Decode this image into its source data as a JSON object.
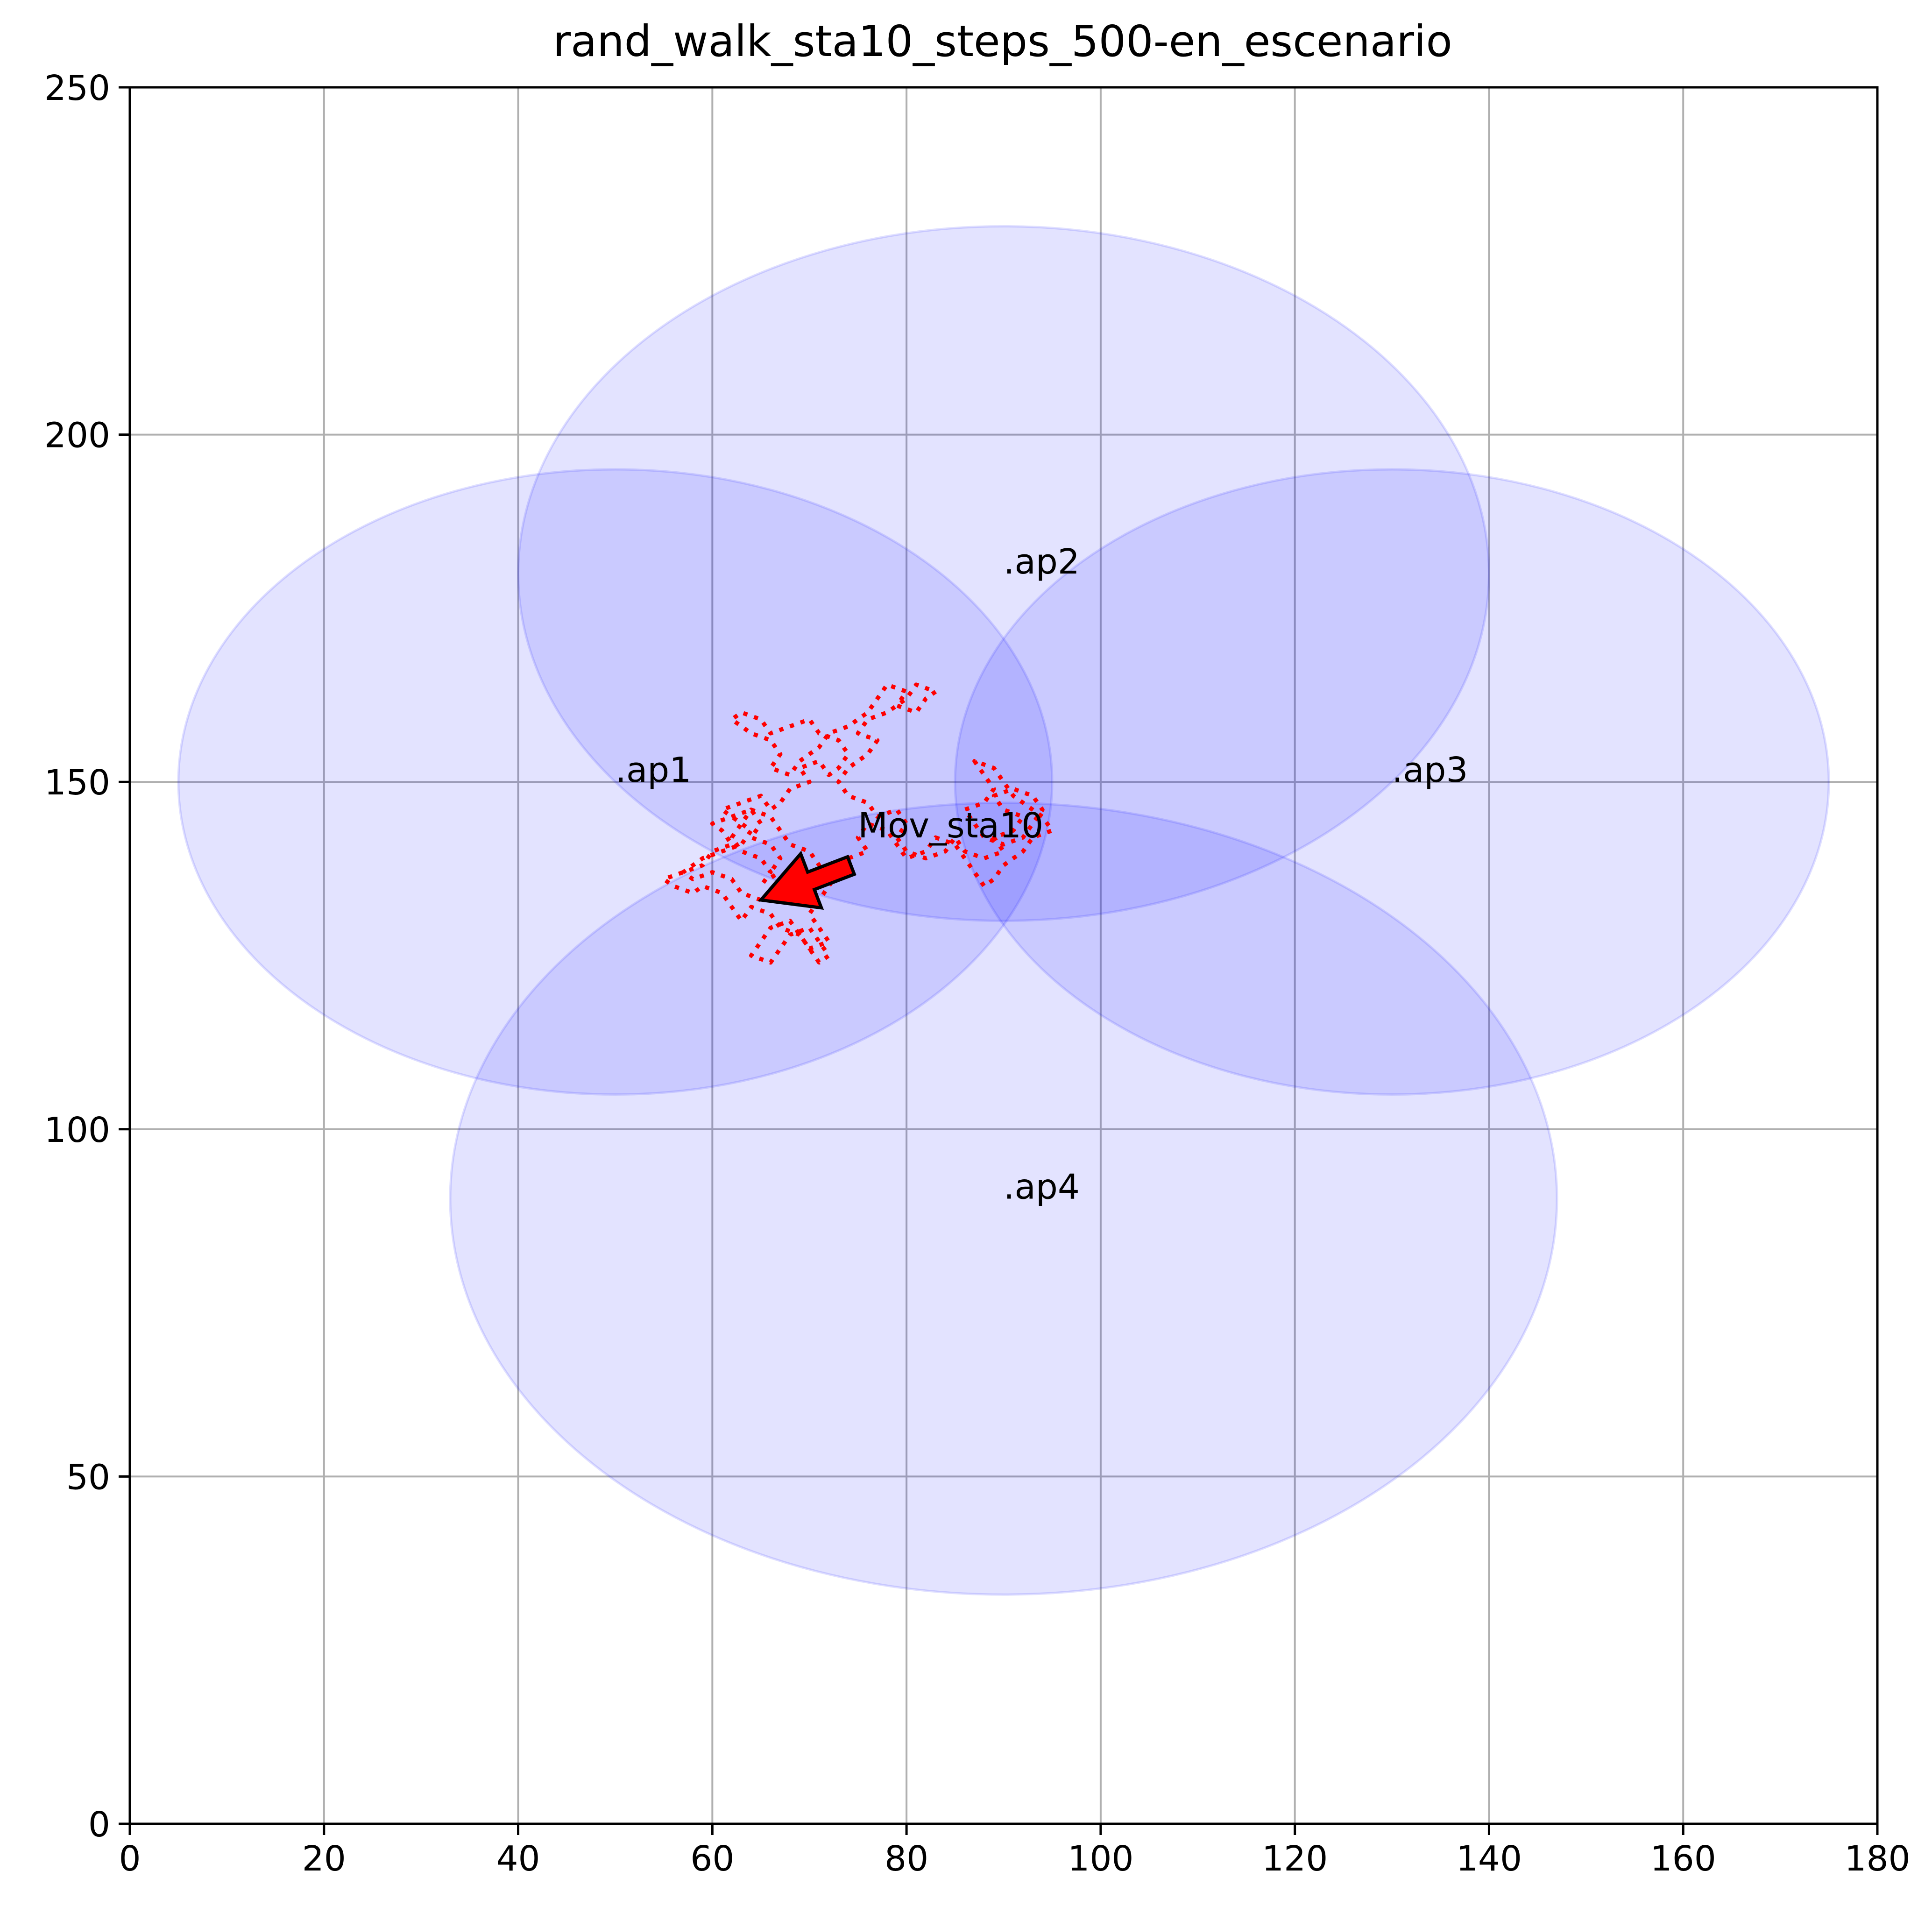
{
  "chart_data": {
    "type": "scatter",
    "title": "rand_walk_sta10_steps_500-en_escenario",
    "xlabel": "",
    "ylabel": "",
    "xlim": [
      0,
      180
    ],
    "ylim": [
      0,
      250
    ],
    "x_ticks": [
      0,
      20,
      40,
      60,
      80,
      100,
      120,
      140,
      160,
      180
    ],
    "y_ticks": [
      0,
      50,
      100,
      150,
      200,
      250
    ],
    "grid": true,
    "coverage_color": "#0000ff",
    "coverage_opacity": 0.11,
    "path_color": "#ff0000",
    "access_points": [
      {
        "label": ".ap1",
        "x": 50,
        "y": 150,
        "range_x": 45,
        "range_y": 45
      },
      {
        "label": ".ap2",
        "x": 90,
        "y": 180,
        "range_x": 50,
        "range_y": 50
      },
      {
        "label": ".ap3",
        "x": 130,
        "y": 150,
        "range_x": 45,
        "range_y": 45
      },
      {
        "label": ".ap4",
        "x": 90,
        "y": 90,
        "range_x": 57,
        "range_y": 57
      }
    ],
    "annotation": {
      "text": "Mov_sta10",
      "text_x": 75,
      "text_y": 142,
      "arrow_x": 65,
      "arrow_y": 133,
      "color": "#ff0000"
    },
    "path": {
      "name": "",
      "style": "dotted",
      "points": [
        [
          65,
          133
        ],
        [
          63,
          134
        ],
        [
          62,
          136
        ],
        [
          60,
          137
        ],
        [
          58,
          136
        ],
        [
          57,
          137
        ],
        [
          59,
          139
        ],
        [
          61,
          140
        ],
        [
          63,
          141
        ],
        [
          64,
          143
        ],
        [
          62,
          145
        ],
        [
          61,
          146
        ],
        [
          63,
          147
        ],
        [
          65,
          148
        ],
        [
          66,
          146
        ],
        [
          67,
          147
        ],
        [
          68,
          149
        ],
        [
          70,
          150
        ],
        [
          69,
          152
        ],
        [
          71,
          153
        ],
        [
          72,
          151
        ],
        [
          73,
          152
        ],
        [
          74,
          154
        ],
        [
          73,
          156
        ],
        [
          71,
          157
        ],
        [
          70,
          159
        ],
        [
          68,
          158
        ],
        [
          66,
          157
        ],
        [
          65,
          159
        ],
        [
          63,
          160
        ],
        [
          62,
          159
        ],
        [
          64,
          157
        ],
        [
          66,
          156
        ],
        [
          67,
          154
        ],
        [
          66,
          152
        ],
        [
          68,
          151
        ],
        [
          69,
          153
        ],
        [
          71,
          155
        ],
        [
          72,
          157
        ],
        [
          74,
          158
        ],
        [
          76,
          160
        ],
        [
          77,
          162
        ],
        [
          78,
          164
        ],
        [
          80,
          163
        ],
        [
          79,
          161
        ],
        [
          81,
          160
        ],
        [
          82,
          162
        ],
        [
          83,
          163
        ],
        [
          81,
          164
        ],
        [
          80,
          162
        ],
        [
          78,
          160
        ],
        [
          76,
          159
        ],
        [
          75,
          157
        ],
        [
          77,
          156
        ],
        [
          76,
          154
        ],
        [
          74,
          152
        ],
        [
          73,
          150
        ],
        [
          74,
          148
        ],
        [
          76,
          147
        ],
        [
          77,
          145
        ],
        [
          79,
          146
        ],
        [
          80,
          144
        ],
        [
          79,
          142
        ],
        [
          80,
          140
        ],
        [
          82,
          139
        ],
        [
          84,
          140
        ],
        [
          85,
          142
        ],
        [
          86,
          140
        ],
        [
          88,
          139
        ],
        [
          90,
          140
        ],
        [
          89,
          142
        ],
        [
          91,
          143
        ],
        [
          92,
          145
        ],
        [
          90,
          146
        ],
        [
          89,
          148
        ],
        [
          91,
          149
        ],
        [
          93,
          148
        ],
        [
          94,
          146
        ],
        [
          93,
          144
        ],
        [
          92,
          142
        ],
        [
          90,
          141
        ],
        [
          88,
          142
        ],
        [
          87,
          144
        ],
        [
          86,
          146
        ],
        [
          88,
          147
        ],
        [
          89,
          149
        ],
        [
          88,
          151
        ],
        [
          87,
          153
        ],
        [
          89,
          152
        ],
        [
          90,
          150
        ],
        [
          91,
          148
        ],
        [
          92,
          147
        ],
        [
          94,
          145
        ],
        [
          95,
          143
        ],
        [
          93,
          142
        ],
        [
          92,
          140
        ],
        [
          90,
          138
        ],
        [
          89,
          136
        ],
        [
          88,
          135
        ],
        [
          87,
          137
        ],
        [
          86,
          139
        ],
        [
          85,
          141
        ],
        [
          83,
          142
        ],
        [
          82,
          140
        ],
        [
          80,
          139
        ],
        [
          79,
          141
        ],
        [
          78,
          143
        ],
        [
          76,
          144
        ],
        [
          75,
          142
        ],
        [
          76,
          140
        ],
        [
          74,
          139
        ],
        [
          73,
          137
        ],
        [
          72,
          135
        ],
        [
          71,
          133
        ],
        [
          70,
          131
        ],
        [
          71,
          129
        ],
        [
          72,
          127
        ],
        [
          70,
          126
        ],
        [
          69,
          128
        ],
        [
          68,
          130
        ],
        [
          66,
          129
        ],
        [
          65,
          127
        ],
        [
          64,
          125
        ],
        [
          66,
          124
        ],
        [
          67,
          126
        ],
        [
          68,
          128
        ],
        [
          70,
          129
        ],
        [
          71,
          127
        ],
        [
          72,
          125
        ],
        [
          71,
          124
        ],
        [
          70,
          126
        ],
        [
          69,
          128
        ],
        [
          67,
          129
        ],
        [
          66,
          131
        ],
        [
          64,
          132
        ],
        [
          63,
          130
        ],
        [
          62,
          132
        ],
        [
          61,
          134
        ],
        [
          59,
          135
        ],
        [
          58,
          134
        ],
        [
          56,
          135
        ],
        [
          55,
          136
        ],
        [
          57,
          137
        ],
        [
          59,
          138
        ],
        [
          60,
          140
        ],
        [
          62,
          141
        ],
        [
          61,
          143
        ],
        [
          60,
          144
        ],
        [
          62,
          145
        ],
        [
          64,
          146
        ],
        [
          65,
          144
        ],
        [
          64,
          142
        ],
        [
          66,
          141
        ],
        [
          67,
          139
        ],
        [
          66,
          137
        ],
        [
          67,
          135
        ],
        [
          69,
          134
        ],
        [
          70,
          136
        ],
        [
          71,
          138
        ],
        [
          70,
          140
        ],
        [
          68,
          141
        ],
        [
          67,
          143
        ],
        [
          66,
          145
        ],
        [
          64,
          146
        ],
        [
          63,
          144
        ],
        [
          62,
          142
        ],
        [
          63,
          140
        ],
        [
          65,
          139
        ],
        [
          66,
          137
        ],
        [
          65,
          135
        ]
      ]
    }
  }
}
